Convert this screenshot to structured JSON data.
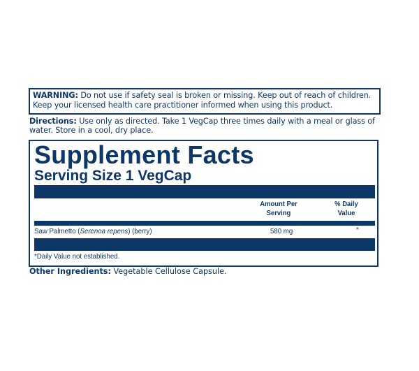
{
  "warning": {
    "label": "WARNING:",
    "text": " Do not use if safety seal is broken or missing. Keep out of reach of children. Keep your licensed health care practitioner informed when using this product."
  },
  "directions": {
    "label": "Directions:",
    "text": " Use only as directed. Take 1 VegCap three times daily with a meal or glass of water. Store in a cool, dry place."
  },
  "facts": {
    "title": "Supplement Facts",
    "serving_size": "Serving Size 1 VegCap",
    "columns": {
      "amount": "Amount Per Serving",
      "dv": "% Daily Value"
    },
    "rows": [
      {
        "name": "Saw Palmetto (",
        "latin": "Serenoa repens",
        "part": ") (berry)",
        "amount": "580 mg",
        "dv": "*"
      }
    ],
    "footnote": "*Daily Value not established."
  },
  "other": {
    "label": "Other Ingredients:",
    "text": " Vegetable Cellulose Capsule."
  },
  "colors": {
    "navy": "#0d3766"
  }
}
